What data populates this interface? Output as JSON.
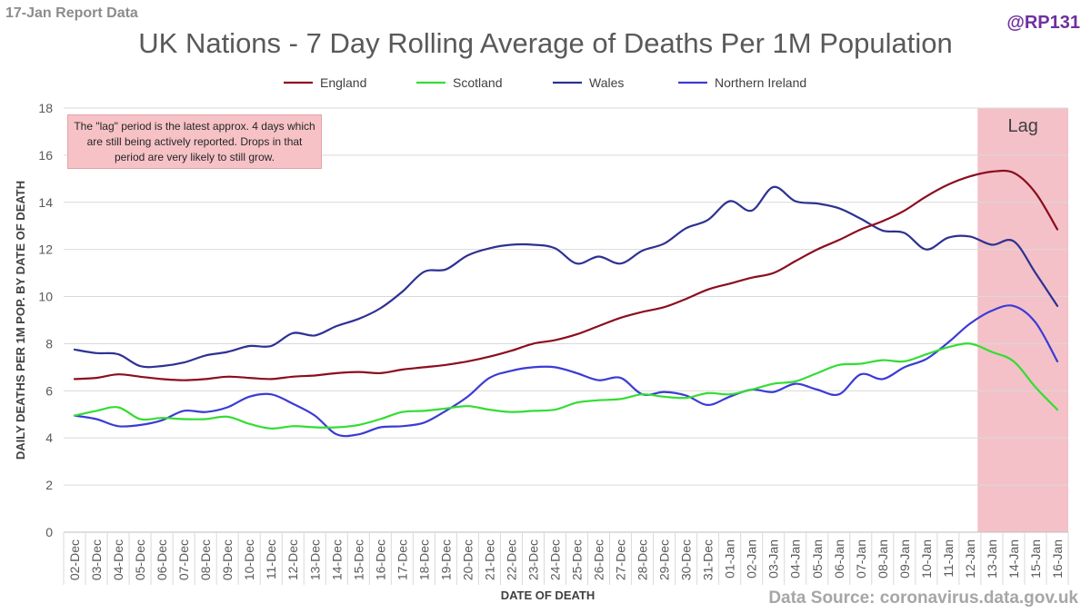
{
  "header": {
    "report_label": "17-Jan Report Data",
    "handle": "@RP131",
    "source": "Data Source: coronavirus.data.gov.uk"
  },
  "note": "The \"lag\" period is the latest approx. 4 days which are still being actively reported.  Drops in that period are very likely to still grow.",
  "colors": {
    "England": "#8b0d1f",
    "Scotland": "#33dd33",
    "Wales": "#2e3192",
    "Northern Ireland": "#3b3bd6",
    "lag": "#f4c1c8",
    "grid": "#d9d9d9"
  },
  "chart_data": {
    "type": "line",
    "title": "UK Nations - 7 Day Rolling Average of Deaths Per 1M Population",
    "xlabel": "DATE OF DEATH",
    "ylabel": "DAILY DEATHS PER 1M POP. BY DATE OF DEATH",
    "ylim": [
      0,
      18
    ],
    "yticks": [
      0,
      2,
      4,
      6,
      8,
      10,
      12,
      14,
      16,
      18
    ],
    "grid": true,
    "legend_position": "top",
    "lag_label": "Lag",
    "lag_range": [
      "13-Jan",
      "16-Jan"
    ],
    "categories": [
      "02-Dec",
      "03-Dec",
      "04-Dec",
      "05-Dec",
      "06-Dec",
      "07-Dec",
      "08-Dec",
      "09-Dec",
      "10-Dec",
      "11-Dec",
      "12-Dec",
      "13-Dec",
      "14-Dec",
      "15-Dec",
      "16-Dec",
      "17-Dec",
      "18-Dec",
      "19-Dec",
      "20-Dec",
      "21-Dec",
      "22-Dec",
      "23-Dec",
      "24-Dec",
      "25-Dec",
      "26-Dec",
      "27-Dec",
      "28-Dec",
      "29-Dec",
      "30-Dec",
      "31-Dec",
      "01-Jan",
      "02-Jan",
      "03-Jan",
      "04-Jan",
      "05-Jan",
      "06-Jan",
      "07-Jan",
      "08-Jan",
      "09-Jan",
      "10-Jan",
      "11-Jan",
      "12-Jan",
      "13-Jan",
      "14-Jan",
      "15-Jan",
      "16-Jan"
    ],
    "series": [
      {
        "name": "England",
        "values": [
          6.5,
          6.55,
          6.7,
          6.6,
          6.5,
          6.45,
          6.5,
          6.6,
          6.55,
          6.5,
          6.6,
          6.65,
          6.75,
          6.8,
          6.75,
          6.9,
          7.0,
          7.1,
          7.25,
          7.45,
          7.7,
          8.0,
          8.15,
          8.4,
          8.75,
          9.1,
          9.35,
          9.55,
          9.9,
          10.3,
          10.55,
          10.8,
          11.0,
          11.5,
          12.0,
          12.4,
          12.85,
          13.2,
          13.65,
          14.25,
          14.75,
          15.1,
          15.3,
          15.25,
          14.4,
          12.85
        ]
      },
      {
        "name": "Scotland",
        "values": [
          4.95,
          5.15,
          5.3,
          4.8,
          4.85,
          4.8,
          4.8,
          4.9,
          4.6,
          4.4,
          4.5,
          4.45,
          4.45,
          4.55,
          4.8,
          5.1,
          5.15,
          5.25,
          5.35,
          5.2,
          5.1,
          5.15,
          5.2,
          5.5,
          5.6,
          5.65,
          5.85,
          5.75,
          5.7,
          5.9,
          5.85,
          6.05,
          6.3,
          6.4,
          6.75,
          7.1,
          7.15,
          7.3,
          7.25,
          7.55,
          7.85,
          8.0,
          7.65,
          7.25,
          6.15,
          5.2
        ]
      },
      {
        "name": "Wales",
        "values": [
          7.75,
          7.6,
          7.55,
          7.05,
          7.05,
          7.2,
          7.5,
          7.65,
          7.9,
          7.9,
          8.45,
          8.35,
          8.75,
          9.05,
          9.5,
          10.2,
          11.05,
          11.15,
          11.75,
          12.05,
          12.2,
          12.2,
          12.05,
          11.4,
          11.7,
          11.4,
          11.95,
          12.25,
          12.9,
          13.25,
          14.05,
          13.65,
          14.65,
          14.05,
          13.95,
          13.75,
          13.3,
          12.8,
          12.7,
          12.0,
          12.5,
          12.55,
          12.2,
          12.35,
          11.0,
          9.6
        ]
      },
      {
        "name": "Northern Ireland",
        "values": [
          4.95,
          4.8,
          4.5,
          4.55,
          4.75,
          5.15,
          5.1,
          5.3,
          5.75,
          5.85,
          5.45,
          4.95,
          4.15,
          4.15,
          4.45,
          4.5,
          4.65,
          5.15,
          5.75,
          6.55,
          6.85,
          7.0,
          7.0,
          6.75,
          6.45,
          6.55,
          5.85,
          5.95,
          5.8,
          5.4,
          5.75,
          6.05,
          5.95,
          6.3,
          6.05,
          5.85,
          6.7,
          6.5,
          7.0,
          7.35,
          8.05,
          8.85,
          9.4,
          9.6,
          8.9,
          7.25
        ]
      }
    ]
  }
}
